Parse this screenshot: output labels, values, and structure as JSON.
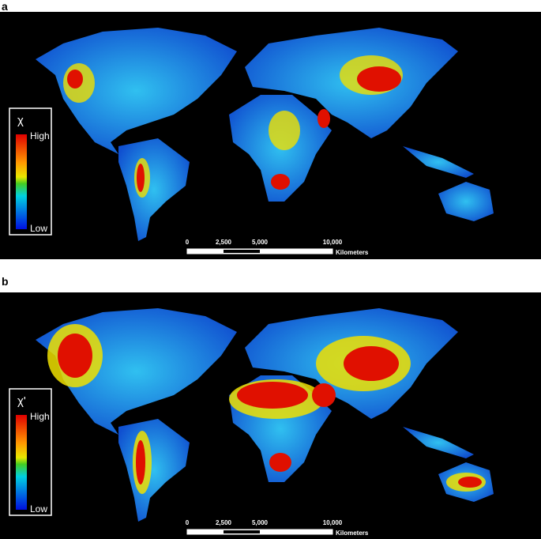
{
  "panels": [
    {
      "label": "a",
      "legend": {
        "title": "χ",
        "high": "High",
        "low": "Low"
      },
      "scale_bar": {
        "ticks": [
          "0",
          "2,500",
          "5,000",
          "10,000"
        ],
        "unit": "Kilometers"
      }
    },
    {
      "label": "b",
      "legend": {
        "title": "χ'",
        "high": "High",
        "low": "Low"
      },
      "scale_bar": {
        "ticks": [
          "0",
          "2,500",
          "5,000",
          "10,000"
        ],
        "unit": "Kilometers"
      }
    }
  ]
}
